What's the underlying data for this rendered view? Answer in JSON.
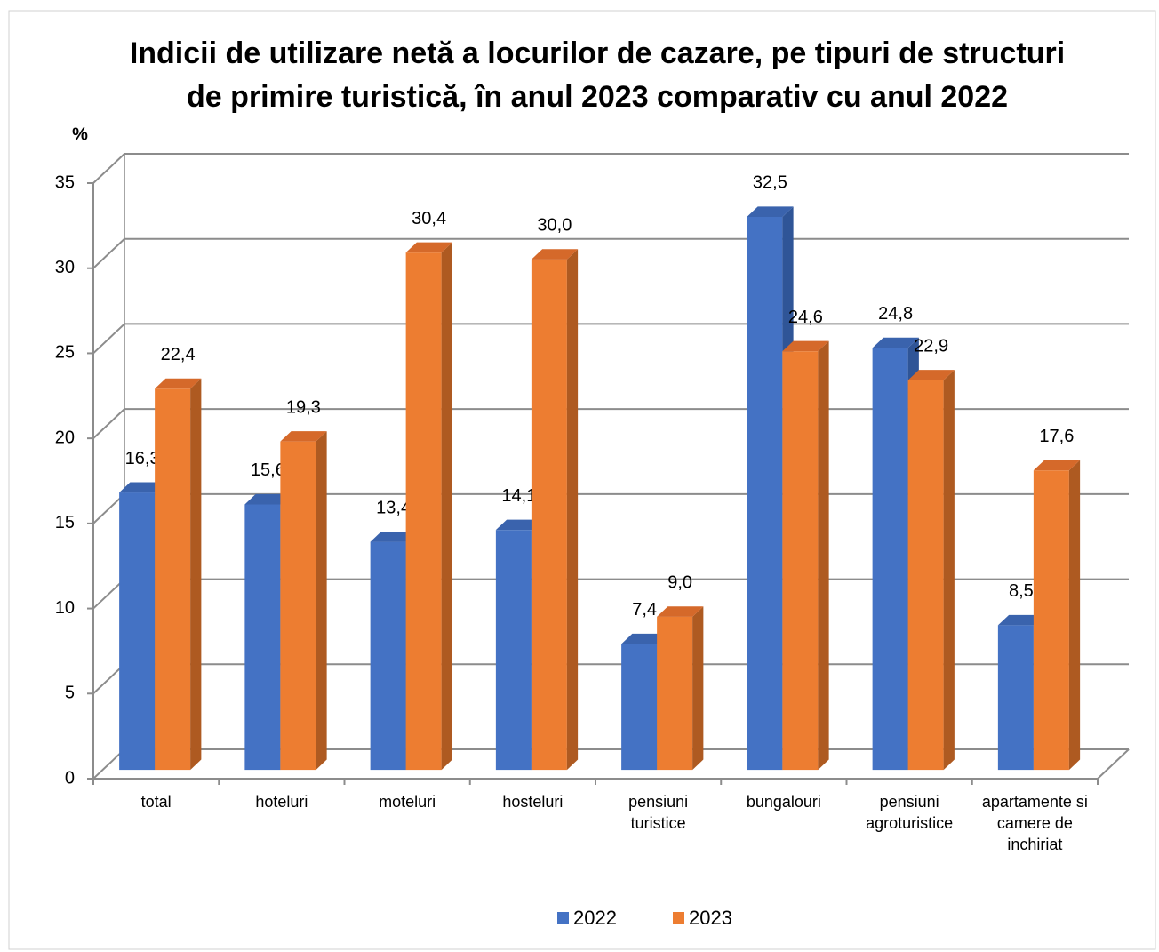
{
  "chart_data": {
    "type": "bar3d",
    "title": "Indicii de utilizare netă a locurilor de cazare, pe tipuri de structuri de primire turistică, în anul 2023 comparativ cu anul 2022",
    "y_axis_label": "%",
    "categories": [
      "total",
      "hoteluri",
      "moteluri",
      "hosteluri",
      "pensiuni turistice",
      "bungalouri",
      "pensiuni agroturistice",
      "apartamente si camere de inchiriat"
    ],
    "series": [
      {
        "name": "2022",
        "color": "#4472c4",
        "side_color": "#2f5597",
        "top_color": "#3a63ad",
        "values": [
          16.3,
          15.6,
          13.4,
          14.1,
          7.4,
          32.5,
          24.8,
          8.5
        ],
        "value_labels": [
          "16,3",
          "15,6",
          "13,4",
          "14,1",
          "7,4",
          "32,5",
          "24,8",
          "8,5"
        ]
      },
      {
        "name": "2023",
        "color": "#ed7d31",
        "side_color": "#ae5a21",
        "top_color": "#d5692a",
        "values": [
          22.4,
          19.3,
          30.4,
          30.0,
          9.0,
          24.6,
          22.9,
          17.6
        ],
        "value_labels": [
          "22,4",
          "19,3",
          "30,4",
          "30,0",
          "9,0",
          "24,6",
          "22,9",
          "17,6"
        ]
      }
    ],
    "ylim": [
      0,
      35
    ],
    "yticks": [
      0,
      5,
      10,
      15,
      20,
      25,
      30,
      35
    ],
    "grid": true,
    "legend": "bottom"
  }
}
